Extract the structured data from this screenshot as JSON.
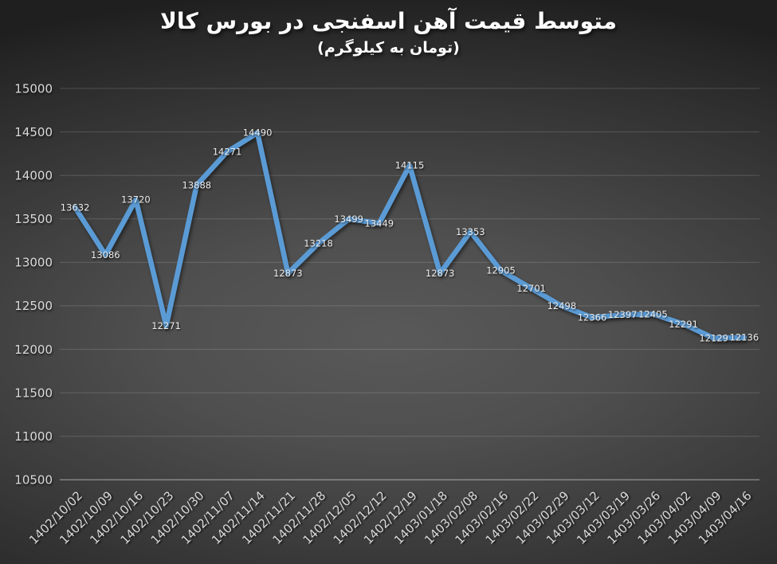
{
  "chart_data": {
    "type": "line",
    "title": "متوسط قیمت آهن اسفنجی در بورس کالا",
    "subtitle": "(تومان به کیلوگرم)",
    "categories": [
      "1402/10/02",
      "1402/10/09",
      "1402/10/16",
      "1402/10/23",
      "1402/10/30",
      "1402/11/07",
      "1402/11/14",
      "1402/11/21",
      "1402/11/28",
      "1402/12/05",
      "1402/12/12",
      "1402/12/19",
      "1403/01/18",
      "1403/02/08",
      "1403/02/16",
      "1403/02/22",
      "1403/02/29",
      "1403/03/12",
      "1403/03/19",
      "1403/03/26",
      "1403/04/02",
      "1403/04/09",
      "1403/04/16"
    ],
    "values": [
      13632,
      13086,
      13720,
      12271,
      13888,
      14271,
      14490,
      12873,
      13218,
      13499,
      13449,
      14115,
      12873,
      13353,
      12905,
      12701,
      12498,
      12366,
      12397,
      12405,
      12291,
      12129,
      12136
    ],
    "ylim": [
      10500,
      15000
    ],
    "ytick_step": 500,
    "ytick_labels": [
      "10500",
      "11000",
      "11500",
      "12000",
      "12500",
      "13000",
      "13500",
      "14000",
      "14500",
      "15000"
    ],
    "grid": true,
    "legend_position": "none",
    "data_labels_shown": true,
    "xlabel": "",
    "ylabel": "",
    "colors": {
      "line": "#5B9BD5",
      "data_label": "#EDEDED",
      "axis_label": "#D9D9D9",
      "title": "#FFFFFF",
      "background_center": "#595959",
      "background_edge": "#1F1F1F"
    }
  }
}
